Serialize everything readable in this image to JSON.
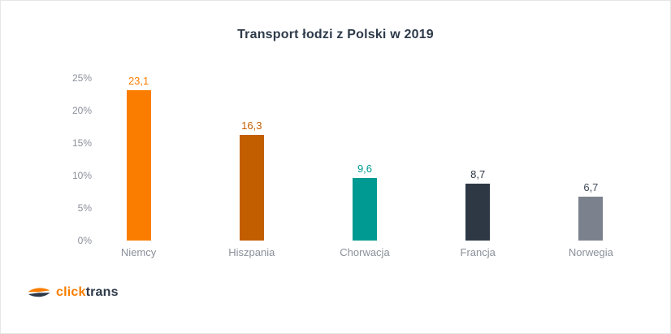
{
  "chart_data": {
    "type": "bar",
    "title": "Transport łodzi z Polski w 2019",
    "categories": [
      "Niemcy",
      "Hiszpania",
      "Chorwacja",
      "Francja",
      "Norwegia"
    ],
    "values": [
      23.1,
      16.3,
      9.6,
      8.7,
      6.7
    ],
    "value_labels": [
      "23,1",
      "16,3",
      "9,6",
      "8,7",
      "6,7"
    ],
    "bar_colors": [
      "#fa7d00",
      "#c25e00",
      "#009a92",
      "#2e3845",
      "#7b828d"
    ],
    "value_label_colors": [
      "#fa7d00",
      "#c25e00",
      "#009a92",
      "#2e3845",
      "#414b59"
    ],
    "xlabel": "",
    "ylabel": "",
    "unit": "%",
    "ylim": [
      0,
      25
    ],
    "y_ticks": [
      {
        "value": 0,
        "label": "0%"
      },
      {
        "value": 5,
        "label": "5%"
      },
      {
        "value": 10,
        "label": "10%"
      },
      {
        "value": 15,
        "label": "15%"
      },
      {
        "value": 20,
        "label": "20%"
      },
      {
        "value": 25,
        "label": "25%"
      }
    ],
    "grid": false,
    "legend": false
  },
  "footer": {
    "logo_click": "click",
    "logo_trans": "trans"
  },
  "colors": {
    "title_text": "#2e3a4a",
    "axis_text": "#8a909a",
    "background": "#ffffff",
    "canvas_border": "#e6e6e6",
    "logo_orange": "#f97d00",
    "logo_navy": "#2e3a4a"
  }
}
